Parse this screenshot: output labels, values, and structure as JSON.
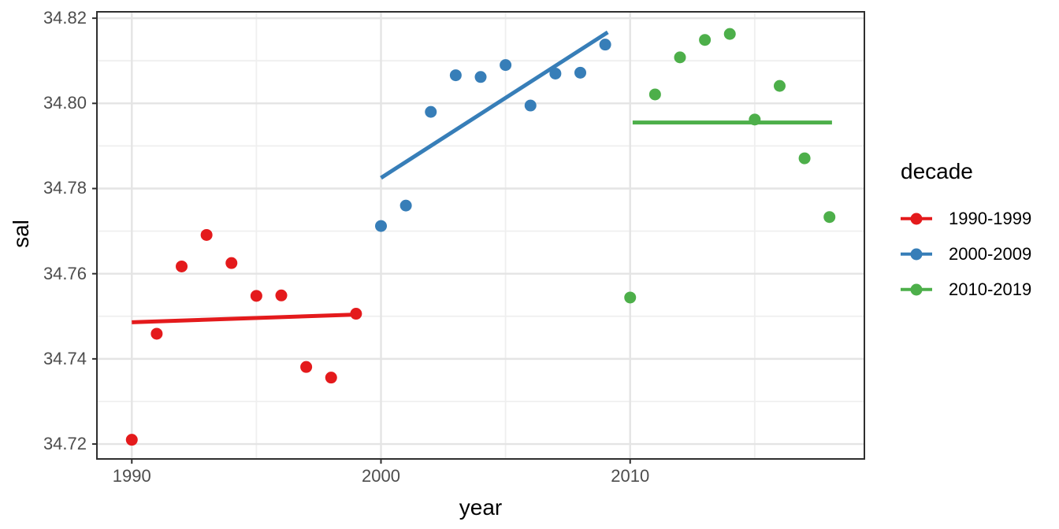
{
  "figure": {
    "x_tick_labels": [
      "1990",
      "2000",
      "2010"
    ],
    "y_tick_labels": [
      "34.72",
      "34.74",
      "34.76",
      "34.78",
      "34.80",
      "34.82"
    ]
  },
  "chart_data": {
    "type": "scatter",
    "title": "",
    "xlabel": "year",
    "ylabel": "sal",
    "xlim": [
      1988.6,
      2019.4
    ],
    "ylim": [
      34.7165,
      34.8215
    ],
    "x_major_ticks": [
      1990,
      2000,
      2010
    ],
    "x_minor_gridlines": [
      1995,
      2005,
      2015
    ],
    "y_major_ticks": [
      34.72,
      34.74,
      34.76,
      34.78,
      34.8,
      34.82
    ],
    "y_minor_gridlines": [
      34.73,
      34.75,
      34.77,
      34.79,
      34.81
    ],
    "grid": true,
    "legend_position": "right",
    "legend_title": "decade",
    "series": [
      {
        "name": "1990-1999",
        "color": "#E41A1C",
        "x": [
          1990,
          1991,
          1992,
          1993,
          1994,
          1995,
          1996,
          1997,
          1998,
          1999
        ],
        "y": [
          34.721,
          34.7459,
          34.7617,
          34.7691,
          34.7625,
          34.7548,
          34.7549,
          34.7381,
          34.7356,
          34.7506
        ],
        "trend_line": {
          "x": [
            1990.0,
            1999.0
          ],
          "y": [
            34.7486,
            34.7504
          ]
        }
      },
      {
        "name": "2000-2009",
        "color": "#377EB8",
        "x": [
          2000,
          2001,
          2002,
          2003,
          2004,
          2005,
          2006,
          2007,
          2008,
          2009
        ],
        "y": [
          34.7712,
          34.776,
          34.798,
          34.8066,
          34.8062,
          34.809,
          34.7995,
          34.807,
          34.8072,
          34.8138
        ],
        "trend_line": {
          "x": [
            2000.0,
            2009.1
          ],
          "y": [
            34.7825,
            34.8167
          ]
        }
      },
      {
        "name": "2010-2019",
        "color": "#4DAF4A",
        "x": [
          2010,
          2011,
          2012,
          2013,
          2014,
          2015,
          2016,
          2017,
          2018
        ],
        "y": [
          34.7544,
          34.8021,
          34.8108,
          34.8149,
          34.8163,
          34.7962,
          34.8041,
          34.7871,
          34.7733
        ],
        "trend_line": {
          "x": [
            2010.1,
            2018.1
          ],
          "y": [
            34.7955,
            34.7955
          ]
        }
      }
    ],
    "style": {
      "panel_border_color": "#2f2f2f",
      "major_gridline_color": "#e4e4e4",
      "minor_gridline_color": "#efefef",
      "tick_label_color": "#4d4d4d",
      "point_radius": 7.5,
      "trend_line_width": 5
    }
  }
}
